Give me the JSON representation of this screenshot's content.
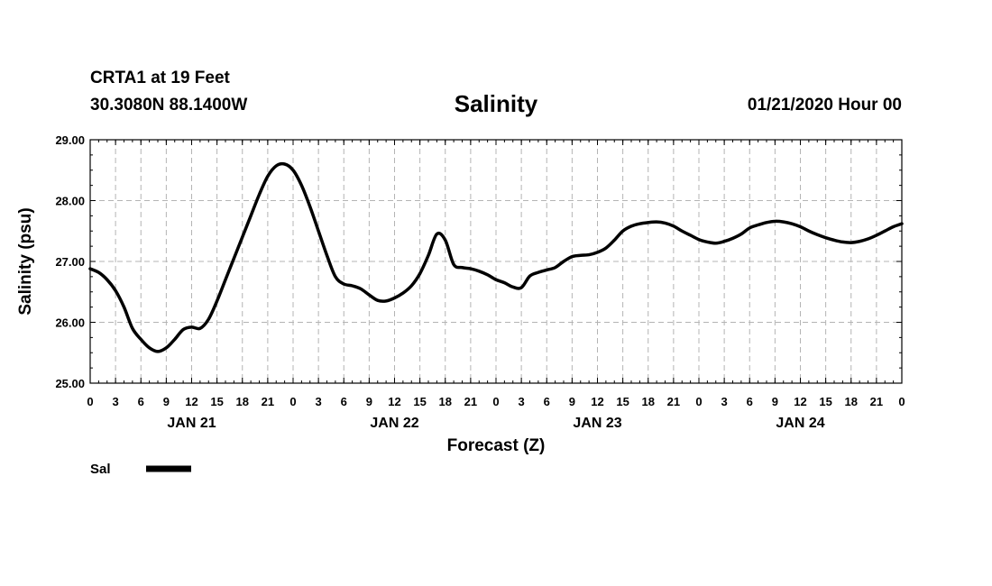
{
  "header": {
    "station": "CRTA1 at 19 Feet",
    "coords": "30.3080N 88.1400W",
    "timestamp": "01/21/2020 Hour 00"
  },
  "chart_data": {
    "type": "line",
    "title": "Salinity",
    "xlabel": "Forecast (Z)",
    "ylabel": "Salinity (psu)",
    "ylim": [
      25.0,
      29.0
    ],
    "y_ticks": [
      "25.00",
      "26.00",
      "27.00",
      "28.00",
      "29.00"
    ],
    "xlim_hours": [
      0,
      96
    ],
    "x_tick_labels": [
      "0",
      "3",
      "6",
      "9",
      "12",
      "15",
      "18",
      "21",
      "0",
      "3",
      "6",
      "9",
      "12",
      "15",
      "18",
      "21",
      "0",
      "3",
      "6",
      "9",
      "12",
      "15",
      "18",
      "21",
      "0",
      "3",
      "6",
      "9",
      "12",
      "15",
      "18",
      "21",
      "0"
    ],
    "day_labels": [
      "JAN 21",
      "JAN 22",
      "JAN 23",
      "JAN 24"
    ],
    "grid": true,
    "series": [
      {
        "name": "Sal",
        "color": "#000000",
        "x": [
          0,
          1,
          2,
          3,
          4,
          5,
          6,
          7,
          8,
          9,
          10,
          11,
          12,
          13,
          14,
          15,
          16,
          17,
          18,
          19,
          20,
          21,
          22,
          23,
          24,
          25,
          26,
          27,
          28,
          29,
          30,
          31,
          32,
          33,
          34,
          35,
          36,
          37,
          38,
          39,
          40,
          41,
          42,
          43,
          44,
          45,
          46,
          47,
          48,
          49,
          50,
          51,
          52,
          53,
          54,
          55,
          56,
          57,
          58,
          59,
          60,
          61,
          62,
          63,
          64,
          65,
          66,
          67,
          68,
          69,
          70,
          71,
          72,
          73,
          74,
          75,
          76,
          77,
          78,
          79,
          80,
          81,
          82,
          83,
          84,
          85,
          86,
          87,
          88,
          89,
          90,
          91,
          92,
          93,
          94,
          95,
          96
        ],
        "values": [
          26.88,
          26.82,
          26.7,
          26.52,
          26.25,
          25.9,
          25.72,
          25.58,
          25.52,
          25.58,
          25.72,
          25.88,
          25.92,
          25.9,
          26.05,
          26.35,
          26.7,
          27.05,
          27.4,
          27.75,
          28.1,
          28.4,
          28.57,
          28.6,
          28.5,
          28.25,
          27.9,
          27.5,
          27.1,
          26.75,
          26.63,
          26.6,
          26.55,
          26.45,
          26.36,
          26.35,
          26.4,
          26.48,
          26.6,
          26.8,
          27.1,
          27.45,
          27.35,
          26.95,
          26.9,
          26.88,
          26.84,
          26.78,
          26.7,
          26.65,
          26.58,
          26.57,
          26.76,
          26.82,
          26.86,
          26.9,
          27.0,
          27.08,
          27.1,
          27.11,
          27.15,
          27.22,
          27.35,
          27.5,
          27.58,
          27.62,
          27.64,
          27.65,
          27.63,
          27.58,
          27.5,
          27.43,
          27.36,
          27.32,
          27.3,
          27.33,
          27.38,
          27.45,
          27.55,
          27.6,
          27.64,
          27.66,
          27.65,
          27.62,
          27.57,
          27.5,
          27.44,
          27.39,
          27.35,
          27.32,
          27.31,
          27.33,
          27.37,
          27.43,
          27.5,
          27.57,
          27.62
        ]
      }
    ],
    "legend": [
      {
        "label": "Sal",
        "color": "#000000"
      }
    ]
  }
}
